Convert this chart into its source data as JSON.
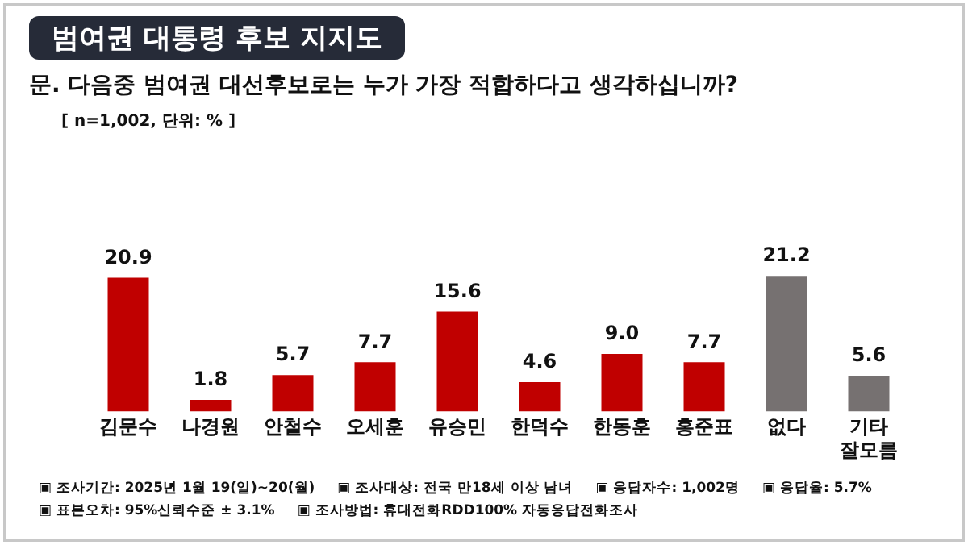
{
  "chart_data": {
    "type": "bar",
    "title": "범여권 대통령 후보 지지도",
    "subtitle": "문. 다음중 범여권 대선후보로는 누가 가장 적합하다고 생각하십니까?",
    "categories": [
      "김문수",
      "나경원",
      "안철수",
      "오세훈",
      "유승민",
      "한덕수",
      "한동훈",
      "홍준표",
      "없다",
      "기타 잘모름"
    ],
    "values": [
      20.9,
      1.8,
      5.7,
      7.7,
      15.6,
      4.6,
      9.0,
      7.7,
      21.2,
      5.6
    ],
    "colors": [
      "#c00000",
      "#c00000",
      "#c00000",
      "#c00000",
      "#c00000",
      "#c00000",
      "#c00000",
      "#c00000",
      "#767171",
      "#767171"
    ],
    "value_labels": [
      "20.9",
      "1.8",
      "5.7",
      "7.7",
      "15.6",
      "4.6",
      "9.0",
      "7.7",
      "21.2",
      "5.6"
    ],
    "grid": false,
    "legend": false,
    "annotations": [
      "[ n=1,002, 단위: % ]",
      "▣ 조사기간: 2025년 1월 19(일)~20(월)",
      "▣ 조사대상: 전국 만18세 이상 남녀",
      "▣ 응답자수: 1,002명",
      "▣ 응답율: 5.7%",
      "▣ 표본오차: 95%신뢰수준 ± 3.1%",
      "▣ 조사방법: 휴대전화RDD100% 자동응답전화조사"
    ]
  }
}
